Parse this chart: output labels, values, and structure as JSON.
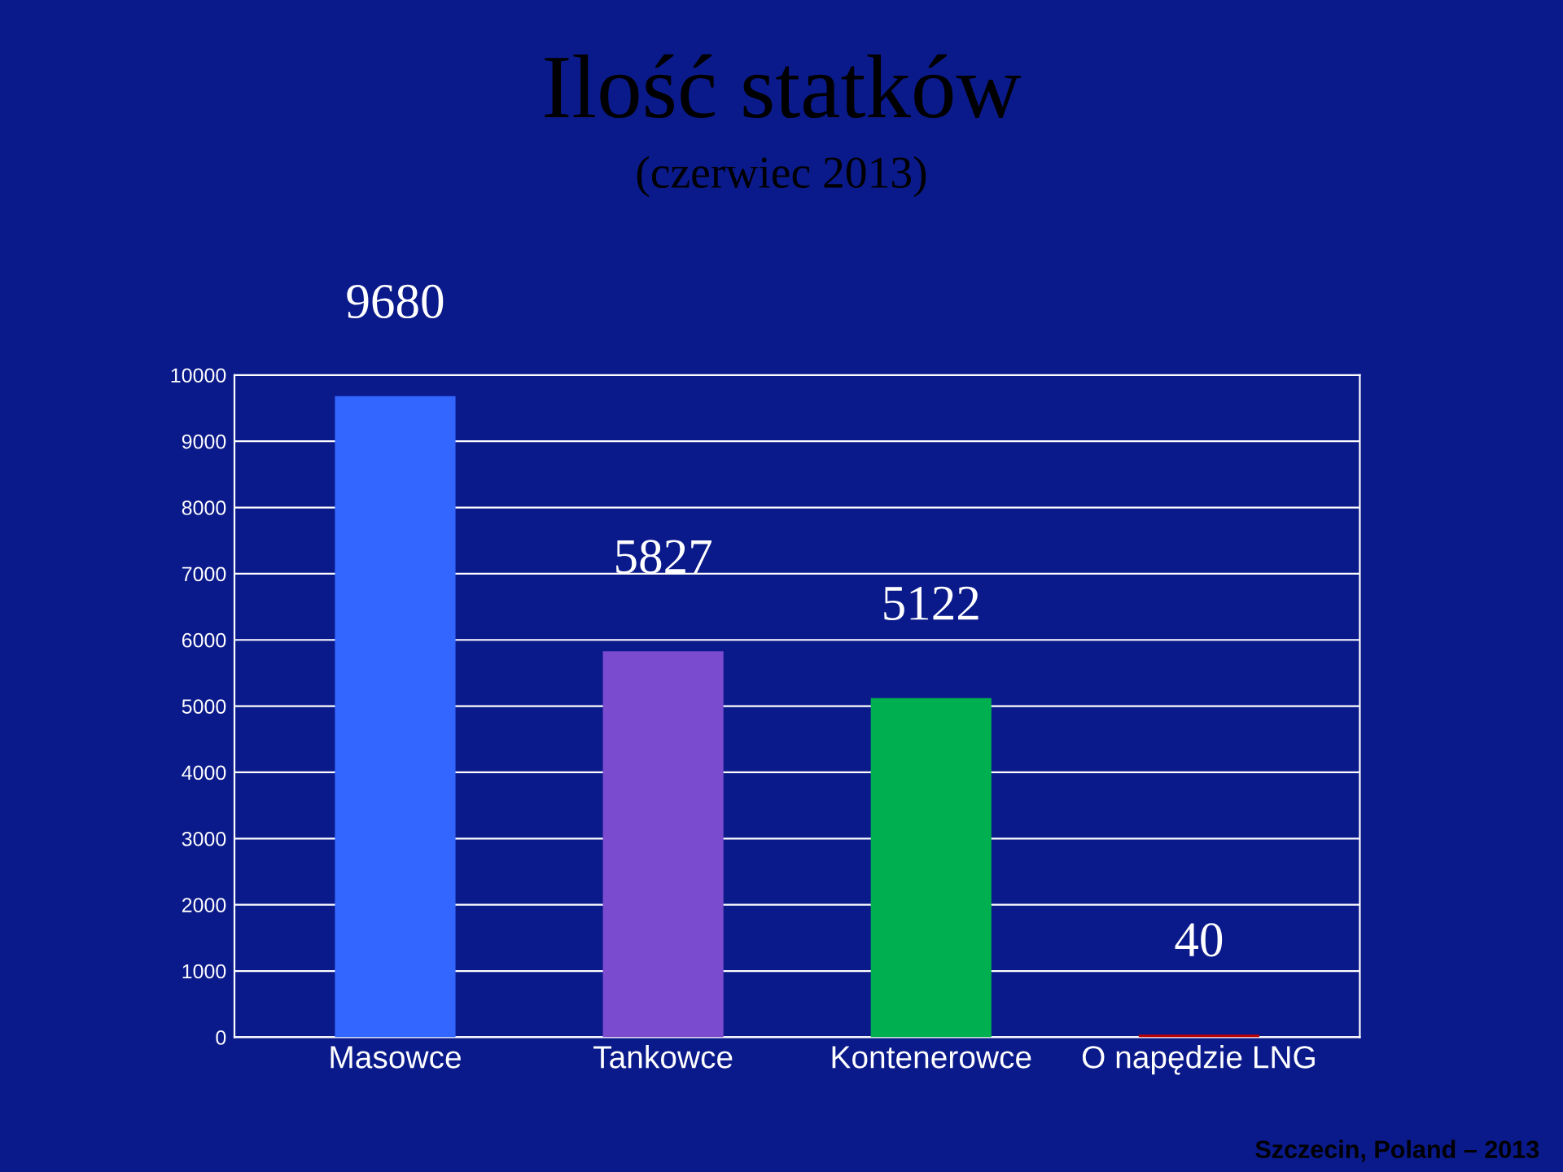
{
  "chart_data": {
    "type": "bar",
    "title": "Ilość statków",
    "subtitle": "(czerwiec 2013)",
    "categories": [
      "Masowce",
      "Tankowce",
      "Kontenerowce",
      "O napędzie LNG"
    ],
    "values": [
      9680,
      5827,
      5122,
      40
    ],
    "colors": [
      "#3366ff",
      "#7b4bcf",
      "#00b050",
      "#c00000"
    ],
    "ylim": [
      0,
      10000
    ],
    "yticks": [
      0,
      1000,
      2000,
      3000,
      4000,
      5000,
      6000,
      7000,
      8000,
      9000,
      10000
    ],
    "grid": "y",
    "data_labels": true,
    "annotations": [
      "Szczecin, Poland – 2013"
    ]
  }
}
